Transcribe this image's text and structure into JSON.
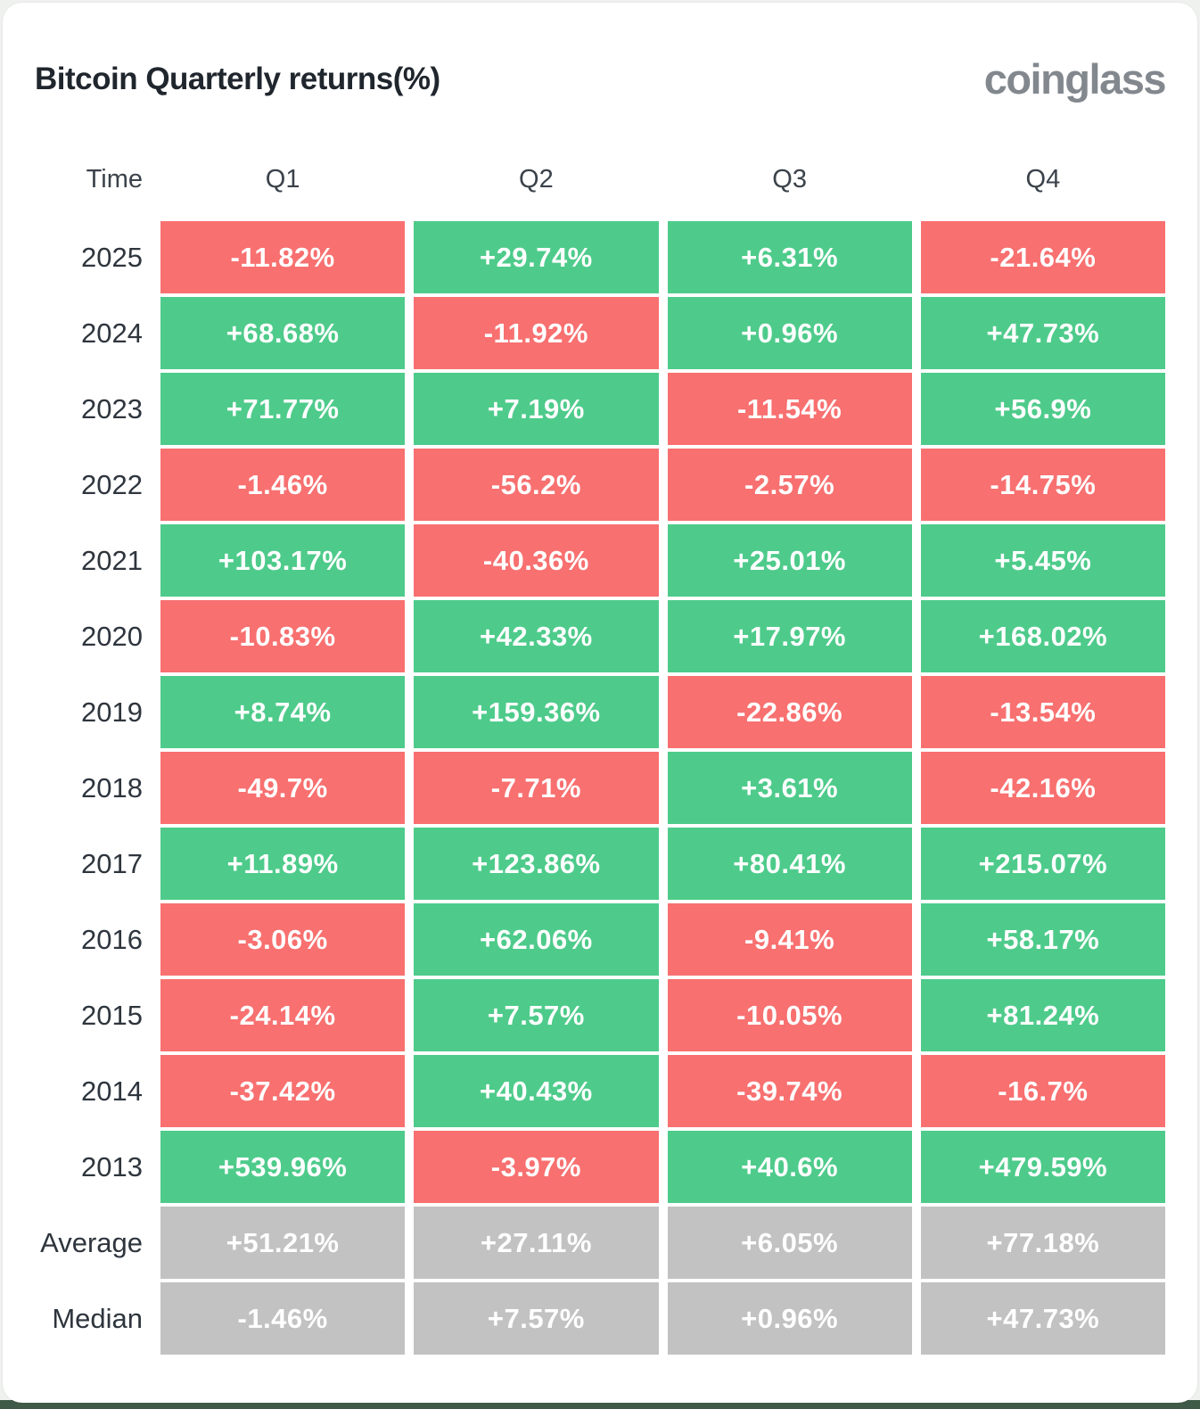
{
  "header": {
    "title": "Bitcoin Quarterly returns(%)",
    "logo_text": "coinglass"
  },
  "colors": {
    "positive": "#4ecb8b",
    "negative": "#f87070",
    "neutral": "#c2c2c2",
    "page_edge_green": "#3f5b47",
    "title_text": "#20262d",
    "logo_text": "#82888e"
  },
  "table": {
    "columns": [
      "Time",
      "Q1",
      "Q2",
      "Q3",
      "Q4"
    ],
    "rows": [
      {
        "label": "2025",
        "cells": [
          {
            "text": "-11.82%",
            "tone": "negative"
          },
          {
            "text": "+29.74%",
            "tone": "positive"
          },
          {
            "text": "+6.31%",
            "tone": "positive"
          },
          {
            "text": "-21.64%",
            "tone": "negative"
          }
        ]
      },
      {
        "label": "2024",
        "cells": [
          {
            "text": "+68.68%",
            "tone": "positive"
          },
          {
            "text": "-11.92%",
            "tone": "negative"
          },
          {
            "text": "+0.96%",
            "tone": "positive"
          },
          {
            "text": "+47.73%",
            "tone": "positive"
          }
        ]
      },
      {
        "label": "2023",
        "cells": [
          {
            "text": "+71.77%",
            "tone": "positive"
          },
          {
            "text": "+7.19%",
            "tone": "positive"
          },
          {
            "text": "-11.54%",
            "tone": "negative"
          },
          {
            "text": "+56.9%",
            "tone": "positive"
          }
        ]
      },
      {
        "label": "2022",
        "cells": [
          {
            "text": "-1.46%",
            "tone": "negative"
          },
          {
            "text": "-56.2%",
            "tone": "negative"
          },
          {
            "text": "-2.57%",
            "tone": "negative"
          },
          {
            "text": "-14.75%",
            "tone": "negative"
          }
        ]
      },
      {
        "label": "2021",
        "cells": [
          {
            "text": "+103.17%",
            "tone": "positive"
          },
          {
            "text": "-40.36%",
            "tone": "negative"
          },
          {
            "text": "+25.01%",
            "tone": "positive"
          },
          {
            "text": "+5.45%",
            "tone": "positive"
          }
        ]
      },
      {
        "label": "2020",
        "cells": [
          {
            "text": "-10.83%",
            "tone": "negative"
          },
          {
            "text": "+42.33%",
            "tone": "positive"
          },
          {
            "text": "+17.97%",
            "tone": "positive"
          },
          {
            "text": "+168.02%",
            "tone": "positive"
          }
        ]
      },
      {
        "label": "2019",
        "cells": [
          {
            "text": "+8.74%",
            "tone": "positive"
          },
          {
            "text": "+159.36%",
            "tone": "positive"
          },
          {
            "text": "-22.86%",
            "tone": "negative"
          },
          {
            "text": "-13.54%",
            "tone": "negative"
          }
        ]
      },
      {
        "label": "2018",
        "cells": [
          {
            "text": "-49.7%",
            "tone": "negative"
          },
          {
            "text": "-7.71%",
            "tone": "negative"
          },
          {
            "text": "+3.61%",
            "tone": "positive"
          },
          {
            "text": "-42.16%",
            "tone": "negative"
          }
        ]
      },
      {
        "label": "2017",
        "cells": [
          {
            "text": "+11.89%",
            "tone": "positive"
          },
          {
            "text": "+123.86%",
            "tone": "positive"
          },
          {
            "text": "+80.41%",
            "tone": "positive"
          },
          {
            "text": "+215.07%",
            "tone": "positive"
          }
        ]
      },
      {
        "label": "2016",
        "cells": [
          {
            "text": "-3.06%",
            "tone": "negative"
          },
          {
            "text": "+62.06%",
            "tone": "positive"
          },
          {
            "text": "-9.41%",
            "tone": "negative"
          },
          {
            "text": "+58.17%",
            "tone": "positive"
          }
        ]
      },
      {
        "label": "2015",
        "cells": [
          {
            "text": "-24.14%",
            "tone": "negative"
          },
          {
            "text": "+7.57%",
            "tone": "positive"
          },
          {
            "text": "-10.05%",
            "tone": "negative"
          },
          {
            "text": "+81.24%",
            "tone": "positive"
          }
        ]
      },
      {
        "label": "2014",
        "cells": [
          {
            "text": "-37.42%",
            "tone": "negative"
          },
          {
            "text": "+40.43%",
            "tone": "positive"
          },
          {
            "text": "-39.74%",
            "tone": "negative"
          },
          {
            "text": "-16.7%",
            "tone": "negative"
          }
        ]
      },
      {
        "label": "2013",
        "cells": [
          {
            "text": "+539.96%",
            "tone": "positive"
          },
          {
            "text": "-3.97%",
            "tone": "negative"
          },
          {
            "text": "+40.6%",
            "tone": "positive"
          },
          {
            "text": "+479.59%",
            "tone": "positive"
          }
        ]
      },
      {
        "label": "Average",
        "cells": [
          {
            "text": "+51.21%",
            "tone": "neutral"
          },
          {
            "text": "+27.11%",
            "tone": "neutral"
          },
          {
            "text": "+6.05%",
            "tone": "neutral"
          },
          {
            "text": "+77.18%",
            "tone": "neutral"
          }
        ]
      },
      {
        "label": "Median",
        "cells": [
          {
            "text": "-1.46%",
            "tone": "neutral"
          },
          {
            "text": "+7.57%",
            "tone": "neutral"
          },
          {
            "text": "+0.96%",
            "tone": "neutral"
          },
          {
            "text": "+47.73%",
            "tone": "neutral"
          }
        ]
      }
    ]
  },
  "chart_data": {
    "type": "heatmap",
    "title": "Bitcoin Quarterly returns(%)",
    "columns": [
      "Q1",
      "Q2",
      "Q3",
      "Q4"
    ],
    "rows": [
      "2025",
      "2024",
      "2023",
      "2022",
      "2021",
      "2020",
      "2019",
      "2018",
      "2017",
      "2016",
      "2015",
      "2014",
      "2013",
      "Average",
      "Median"
    ],
    "values": [
      [
        -11.82,
        29.74,
        6.31,
        -21.64
      ],
      [
        68.68,
        -11.92,
        0.96,
        47.73
      ],
      [
        71.77,
        7.19,
        -11.54,
        56.9
      ],
      [
        -1.46,
        -56.2,
        -2.57,
        -14.75
      ],
      [
        103.17,
        -40.36,
        25.01,
        5.45
      ],
      [
        -10.83,
        42.33,
        17.97,
        168.02
      ],
      [
        8.74,
        159.36,
        -22.86,
        -13.54
      ],
      [
        -49.7,
        -7.71,
        3.61,
        -42.16
      ],
      [
        11.89,
        123.86,
        80.41,
        215.07
      ],
      [
        -3.06,
        62.06,
        -9.41,
        58.17
      ],
      [
        -24.14,
        7.57,
        -10.05,
        81.24
      ],
      [
        -37.42,
        40.43,
        -39.74,
        -16.7
      ],
      [
        539.96,
        -3.97,
        40.6,
        479.59
      ],
      [
        51.21,
        27.11,
        6.05,
        77.18
      ],
      [
        -1.46,
        7.57,
        0.96,
        47.73
      ]
    ],
    "legend": "green = positive quarterly return, red = negative quarterly return, gray = summary rows (Average / Median)",
    "unit": "%"
  }
}
